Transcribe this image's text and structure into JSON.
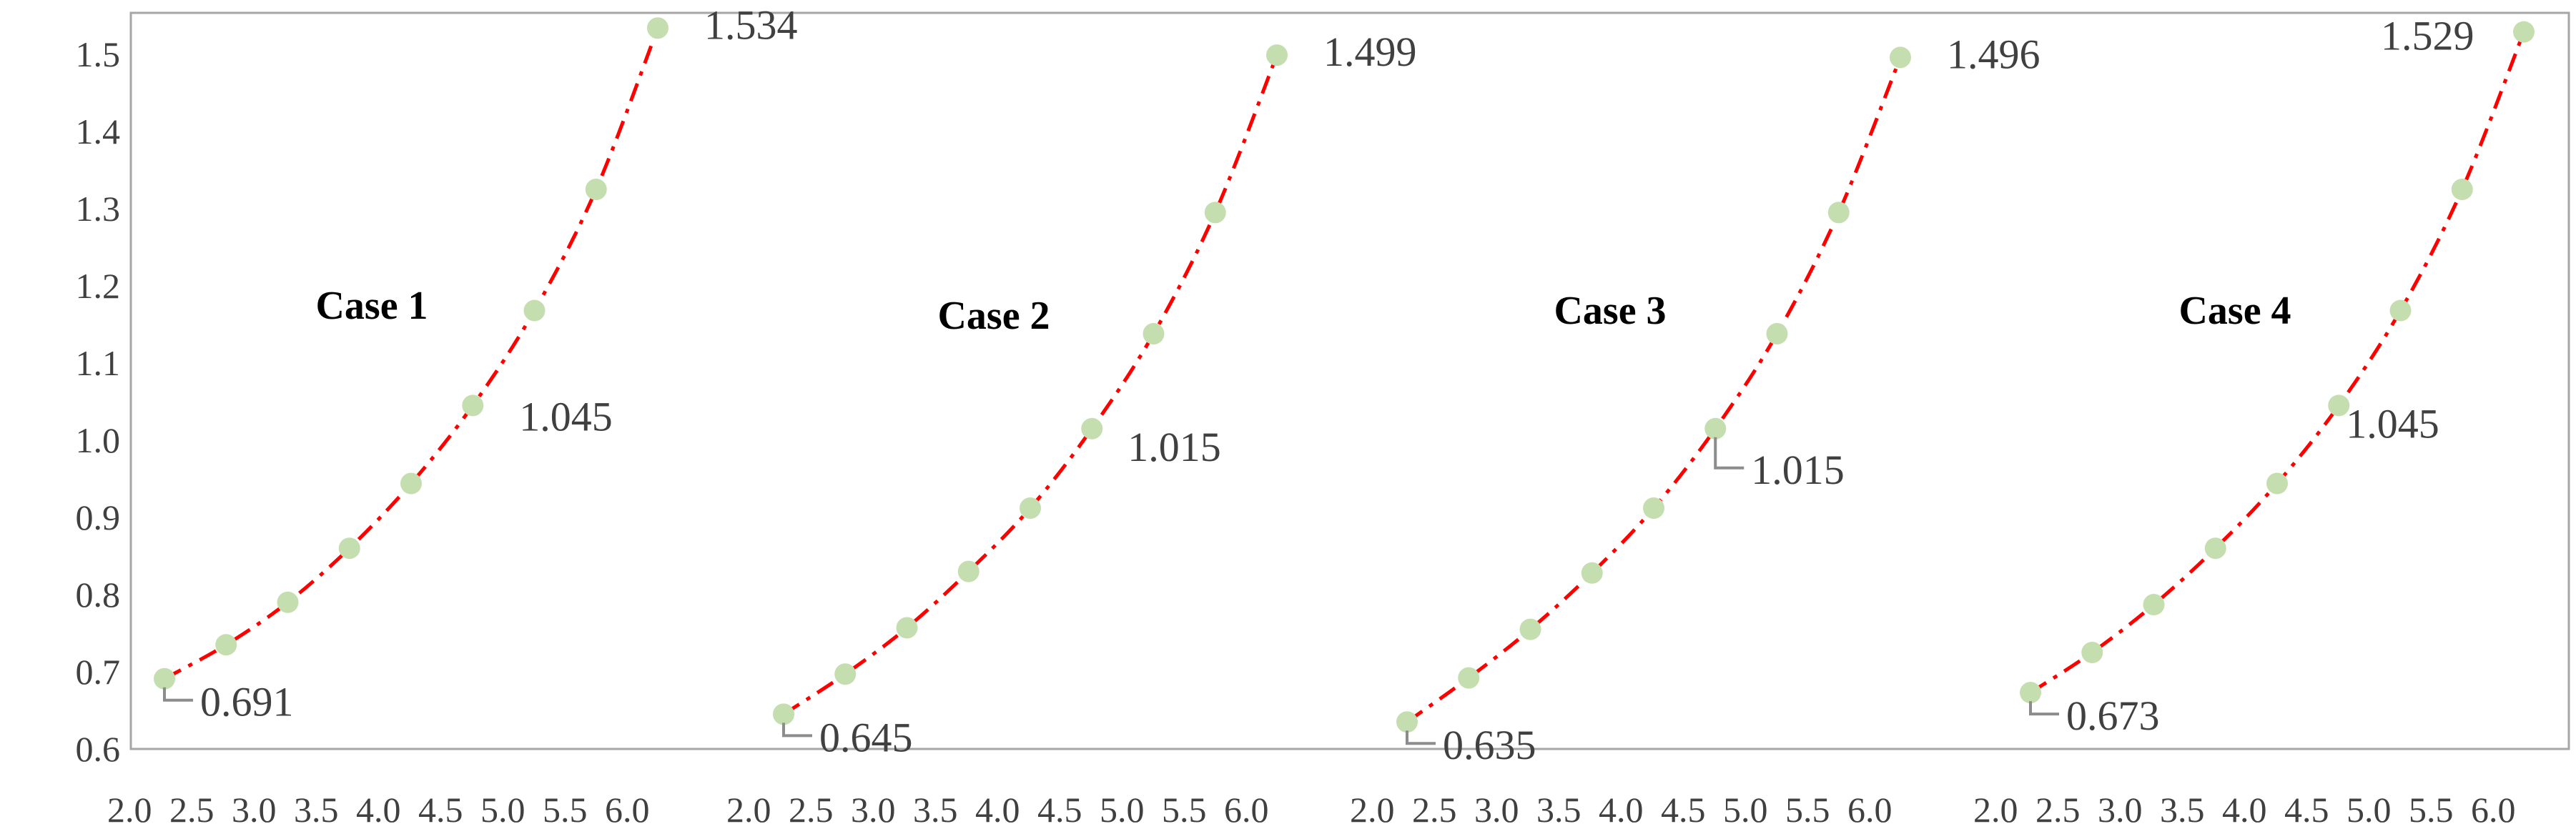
{
  "chart_data": {
    "type": "scatter",
    "ylim": [
      0.6,
      1.5
    ],
    "y_ticks": [
      "0.6",
      "0.7",
      "0.8",
      "0.9",
      "1.0",
      "1.1",
      "1.2",
      "1.3",
      "1.4",
      "1.5"
    ],
    "x_ticks": [
      "2.0",
      "2.5",
      "3.0",
      "3.5",
      "4.0",
      "4.5",
      "5.0",
      "5.5",
      "6.0"
    ],
    "grid": false,
    "colors": {
      "points": "#c4deb0",
      "trendline": "#ff0000",
      "frame": "#a6a6a6"
    },
    "panels": [
      {
        "title": "Case 1",
        "x": [
          2.0,
          2.5,
          3.0,
          3.5,
          4.0,
          4.5,
          5.0,
          5.5,
          6.0
        ],
        "y": [
          0.691,
          0.735,
          0.79,
          0.86,
          0.944,
          1.045,
          1.168,
          1.325,
          1.534
        ],
        "labels": [
          {
            "index": 0,
            "text": "0.691"
          },
          {
            "index": 5,
            "text": "1.045"
          },
          {
            "index": 8,
            "text": "1.534"
          }
        ]
      },
      {
        "title": "Case 2",
        "x": [
          2.0,
          2.5,
          3.0,
          3.5,
          4.0,
          4.5,
          5.0,
          5.5,
          6.0
        ],
        "y": [
          0.645,
          0.697,
          0.757,
          0.83,
          0.912,
          1.015,
          1.138,
          1.295,
          1.499
        ],
        "labels": [
          {
            "index": 0,
            "text": "0.645"
          },
          {
            "index": 5,
            "text": "1.015"
          },
          {
            "index": 8,
            "text": "1.499"
          }
        ]
      },
      {
        "title": "Case 3",
        "x": [
          2.0,
          2.5,
          3.0,
          3.5,
          4.0,
          4.5,
          5.0,
          5.5,
          6.0
        ],
        "y": [
          0.635,
          0.692,
          0.755,
          0.828,
          0.912,
          1.015,
          1.138,
          1.295,
          1.496
        ],
        "labels": [
          {
            "index": 0,
            "text": "0.635"
          },
          {
            "index": 5,
            "text": "1.015"
          },
          {
            "index": 8,
            "text": "1.496"
          }
        ]
      },
      {
        "title": "Case 4",
        "x": [
          2.0,
          2.5,
          3.0,
          3.5,
          4.0,
          4.5,
          5.0,
          5.5,
          6.0
        ],
        "y": [
          0.673,
          0.725,
          0.787,
          0.86,
          0.944,
          1.045,
          1.168,
          1.325,
          1.529
        ],
        "labels": [
          {
            "index": 0,
            "text": "0.673"
          },
          {
            "index": 5,
            "text": "1.045"
          },
          {
            "index": 8,
            "text": "1.529"
          }
        ]
      }
    ]
  }
}
